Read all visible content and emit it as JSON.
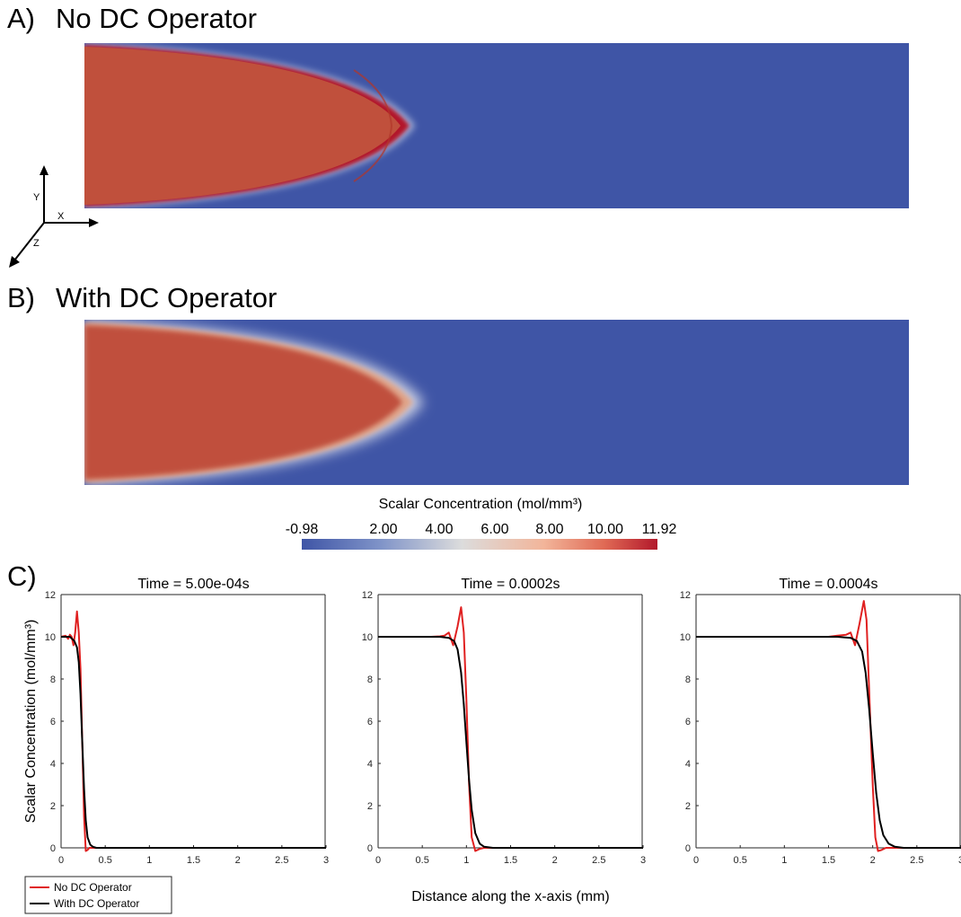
{
  "panel_a": {
    "letter": "A)",
    "title": "No DC Operator"
  },
  "panel_b": {
    "letter": "B)",
    "title": "With DC Operator"
  },
  "panel_c": {
    "letter": "C)"
  },
  "axes_triad": {
    "x": "X",
    "y": "Y",
    "z": "Z"
  },
  "colorbar": {
    "title": "Scalar Concentration (mol/mm³)",
    "ticks": [
      "-0.98",
      "2.00",
      "4.00",
      "6.00",
      "8.00",
      "10.00",
      "11.92"
    ],
    "min": -0.98,
    "max": 11.92,
    "colors": {
      "low": "#3f55a6",
      "mid": "#dcdcdc",
      "high": "#b2182b"
    }
  },
  "colors": {
    "no_dc": "#e02020",
    "with_dc": "#000000",
    "field_low": "#3f55a6",
    "field_high": "#c0503c"
  },
  "chart_data": [
    {
      "type": "line",
      "title": "Time = 5.00e-04s",
      "ylabel": "Scalar Concentration (mol/mm³)",
      "xlabel": "",
      "xlim": [
        0,
        3
      ],
      "ylim": [
        0,
        12
      ],
      "xticks": [
        "0",
        "0.5",
        "1",
        "1.5",
        "2",
        "2.5",
        "3"
      ],
      "yticks": [
        "0",
        "2",
        "4",
        "6",
        "8",
        "10",
        "12"
      ],
      "series": [
        {
          "name": "No DC Operator",
          "color": "#e02020",
          "x": [
            0,
            0.05,
            0.08,
            0.1,
            0.12,
            0.14,
            0.16,
            0.18,
            0.2,
            0.22,
            0.24,
            0.26,
            0.28,
            0.3,
            0.32,
            0.35,
            0.4,
            1,
            2,
            3
          ],
          "y": [
            10,
            10.05,
            9.9,
            10.1,
            10.0,
            9.6,
            10.2,
            11.2,
            10.2,
            8.5,
            5.0,
            1.5,
            -0.15,
            -0.1,
            0,
            0,
            0,
            0,
            0,
            0
          ]
        },
        {
          "name": "With DC Operator",
          "color": "#000000",
          "x": [
            0,
            0.1,
            0.15,
            0.18,
            0.2,
            0.22,
            0.24,
            0.26,
            0.28,
            0.3,
            0.33,
            0.36,
            0.4,
            0.5,
            1,
            2,
            3
          ],
          "y": [
            10,
            10,
            9.8,
            9.5,
            8.8,
            7.3,
            5.0,
            2.8,
            1.3,
            0.5,
            0.15,
            0.05,
            0,
            0,
            0,
            0,
            0
          ]
        }
      ]
    },
    {
      "type": "line",
      "title": "Time = 0.0002s",
      "ylabel": "",
      "xlabel": "Distance along the x-axis (mm)",
      "xlim": [
        0,
        3
      ],
      "ylim": [
        0,
        12
      ],
      "xticks": [
        "0",
        "0.5",
        "1",
        "1.5",
        "2",
        "2.5",
        "3"
      ],
      "yticks": [
        "0",
        "2",
        "4",
        "6",
        "8",
        "10",
        "12"
      ],
      "series": [
        {
          "name": "No DC Operator",
          "color": "#e02020",
          "x": [
            0,
            0.6,
            0.7,
            0.75,
            0.8,
            0.85,
            0.9,
            0.94,
            0.97,
            1.0,
            1.03,
            1.06,
            1.1,
            1.15,
            1.2,
            1.3,
            2,
            3
          ],
          "y": [
            10,
            10,
            10.02,
            10.05,
            10.2,
            9.6,
            10.5,
            11.4,
            10.2,
            7.0,
            3.0,
            0.5,
            -0.15,
            -0.05,
            0,
            0,
            0,
            0
          ]
        },
        {
          "name": "With DC Operator",
          "color": "#000000",
          "x": [
            0,
            0.7,
            0.8,
            0.86,
            0.9,
            0.94,
            0.97,
            1.0,
            1.03,
            1.06,
            1.1,
            1.15,
            1.2,
            1.3,
            2,
            3
          ],
          "y": [
            10,
            10,
            9.95,
            9.8,
            9.4,
            8.3,
            6.8,
            5.0,
            3.2,
            1.8,
            0.7,
            0.2,
            0.05,
            0,
            0,
            0
          ]
        }
      ]
    },
    {
      "type": "line",
      "title": "Time = 0.0004s",
      "ylabel": "",
      "xlabel": "",
      "xlim": [
        0,
        3
      ],
      "ylim": [
        0,
        12
      ],
      "xticks": [
        "0",
        "0.5",
        "1",
        "1.5",
        "2",
        "2.5",
        "3"
      ],
      "yticks": [
        "0",
        "2",
        "4",
        "6",
        "8",
        "10",
        "12"
      ],
      "series": [
        {
          "name": "No DC Operator",
          "color": "#e02020",
          "x": [
            0,
            1.5,
            1.6,
            1.7,
            1.75,
            1.8,
            1.85,
            1.9,
            1.93,
            1.96,
            2.0,
            2.03,
            2.06,
            2.1,
            2.15,
            2.2,
            2.3,
            3
          ],
          "y": [
            10,
            10,
            10.05,
            10.1,
            10.2,
            9.6,
            10.6,
            11.7,
            10.8,
            7.5,
            3.0,
            0.5,
            -0.15,
            -0.1,
            0,
            0,
            0,
            0
          ]
        },
        {
          "name": "With DC Operator",
          "color": "#000000",
          "x": [
            0,
            1.6,
            1.75,
            1.82,
            1.88,
            1.92,
            1.96,
            2.0,
            2.04,
            2.08,
            2.12,
            2.18,
            2.25,
            2.35,
            3
          ],
          "y": [
            10,
            10,
            9.95,
            9.8,
            9.3,
            8.3,
            6.6,
            4.5,
            2.6,
            1.3,
            0.6,
            0.2,
            0.05,
            0,
            0
          ]
        }
      ]
    }
  ],
  "legend": {
    "placement": "bottom-left",
    "items": [
      "No DC Operator",
      "With DC Operator"
    ]
  }
}
